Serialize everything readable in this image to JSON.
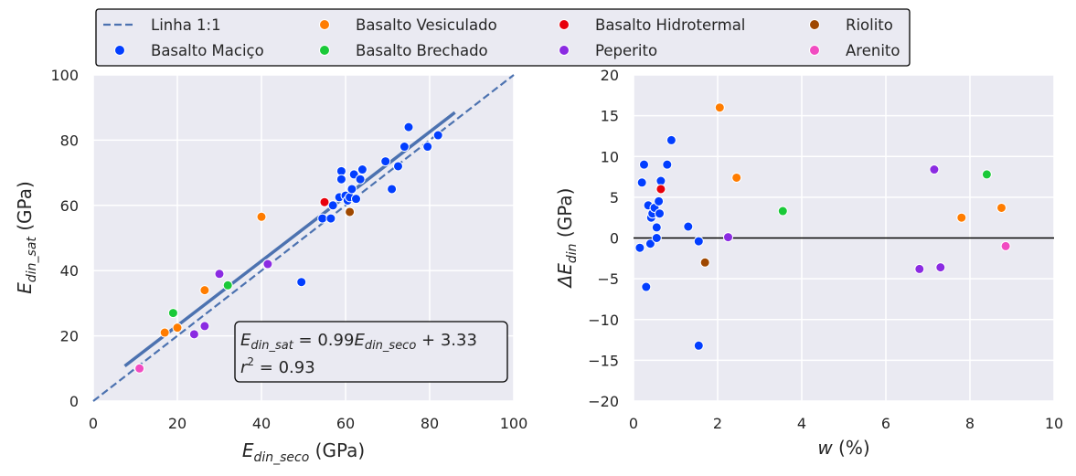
{
  "legend": {
    "items": [
      {
        "key": "line",
        "label": "Linha 1:1"
      },
      {
        "key": "macico",
        "label": "Basalto Maciço"
      },
      {
        "key": "vesiculado",
        "label": "Basalto Vesiculado"
      },
      {
        "key": "brechado",
        "label": "Basalto Brechado"
      },
      {
        "key": "hidrotermal",
        "label": "Basalto Hidrotermal"
      },
      {
        "key": "peperito",
        "label": "Peperito"
      },
      {
        "key": "riolito",
        "label": "Riolito"
      },
      {
        "key": "arenito",
        "label": "Arenito"
      }
    ]
  },
  "colors": {
    "macico": "#023EFF",
    "vesiculado": "#FF7C00",
    "brechado": "#1AC938",
    "hidrotermal": "#E8000B",
    "peperito": "#8B2BE2",
    "riolito": "#9F4800",
    "arenito": "#F14CC1",
    "line": "#4C72B0",
    "panel": "#EAEAF2"
  },
  "chart_data": [
    {
      "type": "scatter",
      "xlabel": {
        "base": "E",
        "sub": "din_seco",
        "suffix": " (GPa)"
      },
      "ylabel": {
        "base": "E",
        "sub": "din_sat",
        "suffix": " (GPa)"
      },
      "xlim": [
        0,
        100
      ],
      "ylim": [
        0,
        100
      ],
      "xticks": [
        "0",
        "20",
        "40",
        "60",
        "80",
        "100"
      ],
      "yticks": [
        "0",
        "20",
        "40",
        "60",
        "80",
        "100"
      ],
      "grid": true,
      "fit_line": {
        "slope": 0.99,
        "intercept": 3.33,
        "x_range": [
          7.5,
          86
        ]
      },
      "identity_line": {
        "label": "Linha 1:1"
      },
      "annotation": {
        "eq_lhs_base": "E",
        "eq_lhs_sub": "din_sat",
        "eq_mid": " = 0.99",
        "eq_rhs_base": "E",
        "eq_rhs_sub": "din_seco",
        "eq_tail": " + 3.33",
        "r2_base": "r",
        "r2_sup": "2",
        "r2_tail": " = 0.93"
      },
      "series": [
        {
          "key": "macico",
          "points": [
            [
              49.5,
              36.5
            ],
            [
              54.5,
              56
            ],
            [
              56.5,
              56
            ],
            [
              57,
              60
            ],
            [
              58.5,
              62.5
            ],
            [
              59,
              70.5
            ],
            [
              59,
              68
            ],
            [
              60,
              63
            ],
            [
              60.5,
              61.5
            ],
            [
              61,
              62.5
            ],
            [
              61.5,
              65
            ],
            [
              62,
              69.5
            ],
            [
              62.5,
              62
            ],
            [
              63.5,
              68
            ],
            [
              64,
              71
            ],
            [
              69.5,
              73.5
            ],
            [
              71,
              65
            ],
            [
              72.5,
              72
            ],
            [
              74,
              78
            ],
            [
              75,
              84
            ],
            [
              79.5,
              78
            ],
            [
              82,
              81.5
            ]
          ]
        },
        {
          "key": "vesiculado",
          "points": [
            [
              17,
              21
            ],
            [
              20,
              22.5
            ],
            [
              26.5,
              34
            ],
            [
              40,
              56.5
            ]
          ]
        },
        {
          "key": "brechado",
          "points": [
            [
              19,
              27
            ],
            [
              32,
              35.5
            ]
          ]
        },
        {
          "key": "hidrotermal",
          "points": [
            [
              55,
              61
            ]
          ]
        },
        {
          "key": "peperito",
          "points": [
            [
              24,
              20.5
            ],
            [
              26.5,
              23
            ],
            [
              30,
              39
            ],
            [
              41.5,
              42
            ]
          ]
        },
        {
          "key": "riolito",
          "points": [
            [
              61,
              58
            ]
          ]
        },
        {
          "key": "arenito",
          "points": [
            [
              11,
              10
            ]
          ]
        }
      ]
    },
    {
      "type": "scatter",
      "xlabel": {
        "base": "w",
        "suffix": " (%)"
      },
      "ylabel": {
        "prefix": "ΔE",
        "sub": "din",
        "suffix": " (GPa)"
      },
      "xlim": [
        0,
        10
      ],
      "ylim": [
        -20,
        20
      ],
      "xticks": [
        "0",
        "2",
        "4",
        "6",
        "8",
        "10"
      ],
      "yticks": [
        "−20",
        "−15",
        "−10",
        "−5",
        "0",
        "5",
        "10",
        "15",
        "20"
      ],
      "grid": true,
      "zero_line": true,
      "series": [
        {
          "key": "macico",
          "points": [
            [
              0.15,
              -1.2
            ],
            [
              0.2,
              6.8
            ],
            [
              0.25,
              9
            ],
            [
              0.3,
              -6
            ],
            [
              0.35,
              4
            ],
            [
              0.4,
              -0.7
            ],
            [
              0.42,
              2.5
            ],
            [
              0.45,
              3
            ],
            [
              0.5,
              3.7
            ],
            [
              0.55,
              0
            ],
            [
              0.55,
              1.3
            ],
            [
              0.6,
              4.5
            ],
            [
              0.62,
              3
            ],
            [
              0.65,
              7
            ],
            [
              0.8,
              9
            ],
            [
              0.9,
              12
            ],
            [
              1.3,
              1.4
            ],
            [
              1.55,
              -0.4
            ],
            [
              1.55,
              -13.2
            ]
          ]
        },
        {
          "key": "vesiculado",
          "points": [
            [
              2.05,
              16
            ],
            [
              2.45,
              7.4
            ],
            [
              7.8,
              2.5
            ],
            [
              8.75,
              3.7
            ]
          ]
        },
        {
          "key": "brechado",
          "points": [
            [
              3.55,
              3.3
            ],
            [
              8.4,
              7.8
            ]
          ]
        },
        {
          "key": "hidrotermal",
          "points": [
            [
              0.65,
              6
            ]
          ]
        },
        {
          "key": "peperito",
          "points": [
            [
              2.25,
              0.1
            ],
            [
              6.8,
              -3.8
            ],
            [
              7.15,
              8.4
            ],
            [
              7.3,
              -3.6
            ]
          ]
        },
        {
          "key": "riolito",
          "points": [
            [
              1.7,
              -3
            ]
          ]
        },
        {
          "key": "arenito",
          "points": [
            [
              8.85,
              -1
            ]
          ]
        }
      ]
    }
  ]
}
